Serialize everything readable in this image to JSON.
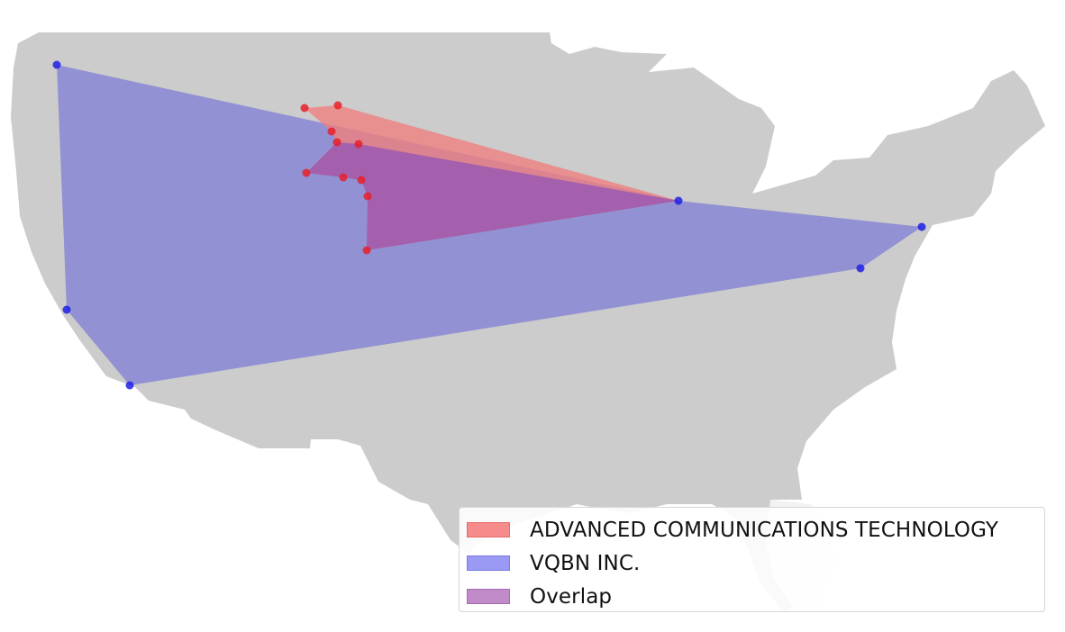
{
  "colors": {
    "land": "#cccccc",
    "land_secondary": "#f2f2f2",
    "state_borders": "#d4d4d4",
    "company_a_fill": "#ef7f7f",
    "company_a_point": "#e8202a",
    "company_b_fill": "#7d7dd6",
    "company_b_point": "#1f1fe6",
    "overlap_fill": "#b57fc2"
  },
  "legend": {
    "items": [
      {
        "label": "ADVANCED COMMUNICATIONS TECHNOLOGY",
        "swatch": "#f58b8b",
        "border": "#e46b6b"
      },
      {
        "label": "VQBN INC.",
        "swatch": "#9a9af5",
        "border": "#7b7be0"
      },
      {
        "label": "Overlap",
        "swatch": "#c08bc8",
        "border": "#a56bb0"
      }
    ]
  }
}
